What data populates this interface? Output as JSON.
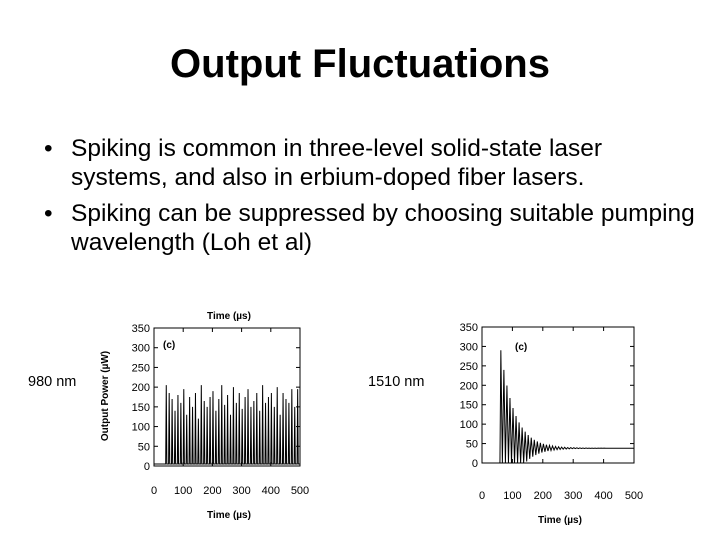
{
  "slide": {
    "title": "Output Fluctuations",
    "bullets": [
      "Spiking is common in three-level solid-state laser systems, and also in erbium-doped fiber lasers.",
      "Spiking can be suppressed by choosing suitable pumping wavelength (Loh et al)"
    ],
    "bullet_symbol": "•"
  },
  "figures": {
    "left_label": "980 nm",
    "right_label": "1510 nm"
  },
  "chart_data": [
    {
      "type": "line",
      "panel_tag": "(c)",
      "xlabel_top": "Time (µs)",
      "xlabel": "Time (µs)",
      "ylabel": "Output Power (µW)",
      "xlim": [
        0,
        500
      ],
      "ylim": [
        0,
        350
      ],
      "xticks": [
        "0",
        "100",
        "200",
        "300",
        "400",
        "500"
      ],
      "yticks": [
        "0",
        "50",
        "100",
        "150",
        "200",
        "250",
        "300",
        "350"
      ],
      "grid": false,
      "series": [
        {
          "baseline": 5,
          "spike_times": [
            42,
            52,
            62,
            72,
            82,
            92,
            102,
            112,
            122,
            132,
            142,
            152,
            162,
            172,
            182,
            192,
            202,
            212,
            222,
            232,
            242,
            252,
            262,
            272,
            282,
            292,
            302,
            312,
            322,
            332,
            342,
            352,
            362,
            372,
            382,
            392,
            402,
            412,
            422,
            432,
            442,
            452,
            462,
            472,
            482,
            492
          ],
          "spike_peaks": [
            205,
            185,
            170,
            140,
            180,
            160,
            195,
            130,
            175,
            150,
            185,
            120,
            205,
            165,
            150,
            175,
            190,
            140,
            170,
            205,
            155,
            180,
            130,
            200,
            160,
            185,
            145,
            175,
            195,
            150,
            165,
            185,
            140,
            205,
            160,
            175,
            185,
            150,
            200,
            130,
            185,
            170,
            160,
            195,
            150,
            195
          ]
        }
      ]
    },
    {
      "type": "line",
      "panel_tag": "(c)",
      "xlabel": "Time (µs)",
      "ylabel": "",
      "xlim": [
        0,
        500
      ],
      "ylim": [
        0,
        350
      ],
      "xticks": [
        "0",
        "100",
        "200",
        "300",
        "400",
        "500"
      ],
      "yticks": [
        "0",
        "50",
        "100",
        "150",
        "200",
        "250",
        "300",
        "350"
      ],
      "grid": false,
      "series": [
        {
          "onset": 62,
          "first_peak": 290,
          "steady_level": 38,
          "decay_time": 45,
          "period": 10
        }
      ]
    }
  ]
}
